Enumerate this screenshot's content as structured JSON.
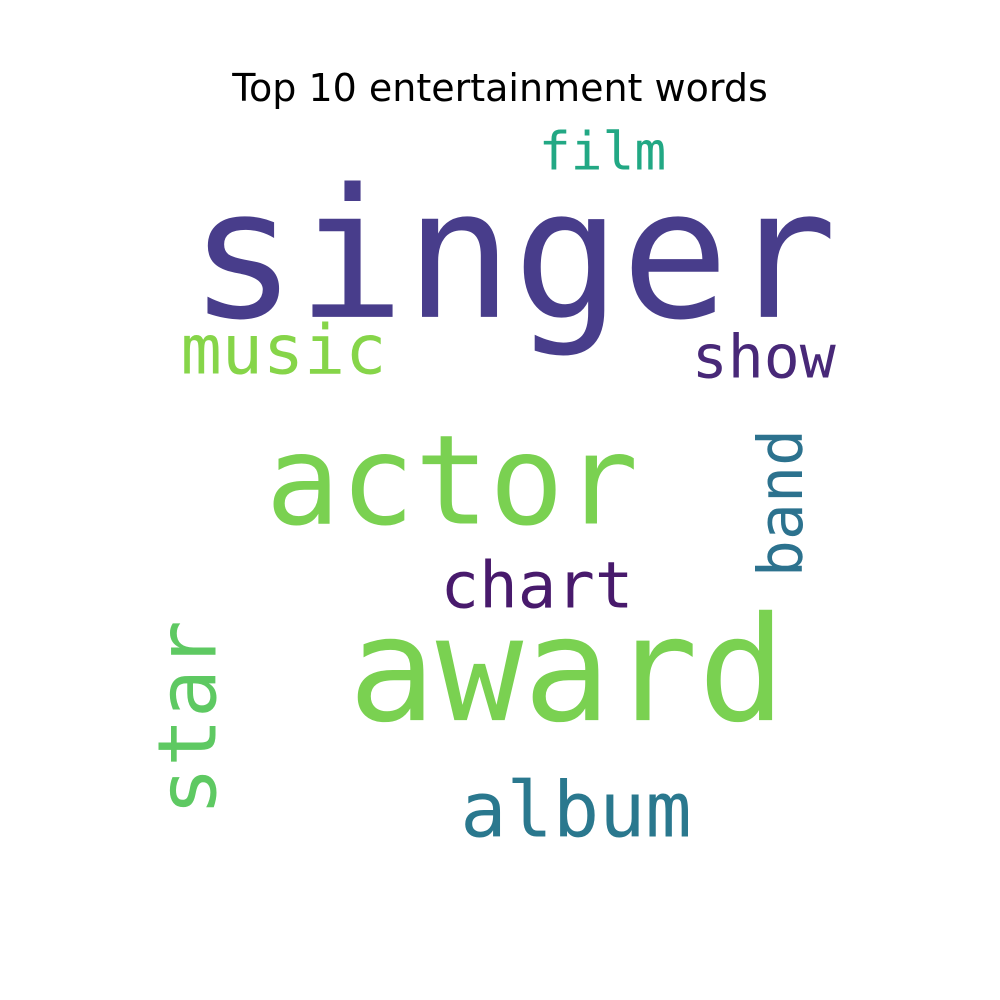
{
  "chart_data": {
    "type": "wordcloud",
    "title": "Top 10 entertainment words",
    "words": [
      {
        "text": "singer",
        "color": "#483d8b",
        "orientation": "horizontal"
      },
      {
        "text": "actor",
        "color": "#7ad151",
        "orientation": "horizontal"
      },
      {
        "text": "award",
        "color": "#7ad151",
        "orientation": "horizontal"
      },
      {
        "text": "album",
        "color": "#2a788e",
        "orientation": "horizontal"
      },
      {
        "text": "music",
        "color": "#86d549",
        "orientation": "horizontal"
      },
      {
        "text": "star",
        "color": "#5ec962",
        "orientation": "vertical"
      },
      {
        "text": "show",
        "color": "#482878",
        "orientation": "horizontal"
      },
      {
        "text": "chart",
        "color": "#481a6c",
        "orientation": "horizontal"
      },
      {
        "text": "band",
        "color": "#2c728e",
        "orientation": "vertical"
      },
      {
        "text": "film",
        "color": "#22a884",
        "orientation": "horizontal"
      }
    ]
  }
}
